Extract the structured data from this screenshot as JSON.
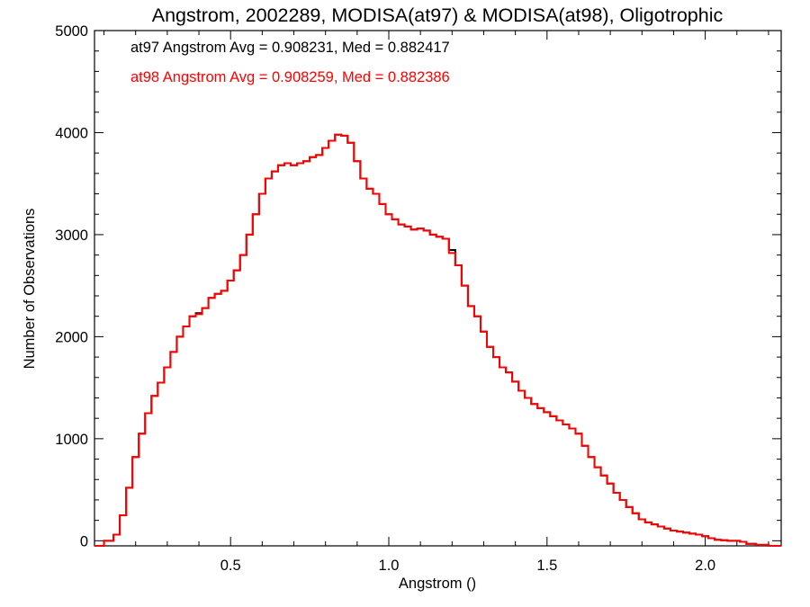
{
  "chart_data": {
    "type": "line",
    "title": "Angstrom, 2002289, MODISA(at97) & MODISA(at98), Oligotrophic",
    "xlabel": "Angstrom ()",
    "ylabel": "Number of Observations",
    "xlim": [
      0.07,
      2.24
    ],
    "ylim": [
      -50,
      5000
    ],
    "xticks": [
      0.5,
      1.0,
      1.5,
      2.0
    ],
    "xtick_labels": [
      "0.5",
      "1.0",
      "1.5",
      "2.0"
    ],
    "yticks": [
      0,
      1000,
      2000,
      3000,
      4000,
      5000
    ],
    "ytick_labels": [
      "0",
      "1000",
      "2000",
      "3000",
      "4000",
      "5000"
    ],
    "grid": false,
    "legend_position": "top-left",
    "step": true,
    "series": [
      {
        "name": "at97",
        "color": "#000000",
        "annotation": "at97 Angstrom Avg = 0.908231, Med = 0.882417",
        "x": [
          0.07,
          0.1,
          0.13,
          0.15,
          0.17,
          0.19,
          0.21,
          0.23,
          0.25,
          0.27,
          0.29,
          0.31,
          0.33,
          0.35,
          0.37,
          0.39,
          0.41,
          0.43,
          0.45,
          0.47,
          0.49,
          0.51,
          0.53,
          0.55,
          0.57,
          0.59,
          0.61,
          0.63,
          0.65,
          0.67,
          0.69,
          0.71,
          0.73,
          0.75,
          0.77,
          0.79,
          0.81,
          0.83,
          0.85,
          0.87,
          0.89,
          0.91,
          0.93,
          0.95,
          0.97,
          0.99,
          1.01,
          1.03,
          1.05,
          1.07,
          1.09,
          1.11,
          1.13,
          1.15,
          1.17,
          1.19,
          1.21,
          1.23,
          1.25,
          1.27,
          1.29,
          1.31,
          1.33,
          1.35,
          1.37,
          1.39,
          1.41,
          1.43,
          1.45,
          1.47,
          1.49,
          1.51,
          1.53,
          1.55,
          1.57,
          1.59,
          1.61,
          1.63,
          1.65,
          1.67,
          1.69,
          1.71,
          1.73,
          1.75,
          1.77,
          1.79,
          1.81,
          1.83,
          1.85,
          1.87,
          1.89,
          1.91,
          1.93,
          1.95,
          1.97,
          1.99,
          2.01,
          2.03,
          2.05,
          2.07,
          2.09,
          2.11,
          2.13,
          2.16,
          2.2,
          2.24
        ],
        "y": [
          -50,
          0,
          60,
          250,
          520,
          820,
          1050,
          1250,
          1420,
          1550,
          1700,
          1850,
          2000,
          2100,
          2200,
          2230,
          2280,
          2380,
          2420,
          2450,
          2550,
          2650,
          2800,
          3000,
          3200,
          3400,
          3550,
          3620,
          3680,
          3700,
          3680,
          3700,
          3720,
          3760,
          3780,
          3850,
          3920,
          3980,
          3970,
          3900,
          3720,
          3550,
          3450,
          3400,
          3300,
          3200,
          3150,
          3100,
          3080,
          3050,
          3060,
          3040,
          3000,
          2980,
          2960,
          2850,
          2700,
          2500,
          2300,
          2200,
          2050,
          1900,
          1800,
          1700,
          1650,
          1560,
          1470,
          1400,
          1340,
          1300,
          1260,
          1220,
          1180,
          1140,
          1100,
          1050,
          930,
          820,
          720,
          640,
          560,
          470,
          400,
          330,
          270,
          210,
          180,
          160,
          140,
          120,
          100,
          90,
          80,
          70,
          60,
          45,
          25,
          10,
          5,
          0,
          0,
          -10,
          -30,
          -40,
          -50,
          -50
        ]
      },
      {
        "name": "at98",
        "color": "#ff0000",
        "annotation": "at98 Angstrom Avg = 0.908259, Med = 0.882386",
        "x": [
          0.07,
          0.1,
          0.13,
          0.15,
          0.17,
          0.19,
          0.21,
          0.23,
          0.25,
          0.27,
          0.29,
          0.31,
          0.33,
          0.35,
          0.37,
          0.39,
          0.41,
          0.43,
          0.45,
          0.47,
          0.49,
          0.51,
          0.53,
          0.55,
          0.57,
          0.59,
          0.61,
          0.63,
          0.65,
          0.67,
          0.69,
          0.71,
          0.73,
          0.75,
          0.77,
          0.79,
          0.81,
          0.83,
          0.85,
          0.87,
          0.89,
          0.91,
          0.93,
          0.95,
          0.97,
          0.99,
          1.01,
          1.03,
          1.05,
          1.07,
          1.09,
          1.11,
          1.13,
          1.15,
          1.17,
          1.19,
          1.21,
          1.23,
          1.25,
          1.27,
          1.29,
          1.31,
          1.33,
          1.35,
          1.37,
          1.39,
          1.41,
          1.43,
          1.45,
          1.47,
          1.49,
          1.51,
          1.53,
          1.55,
          1.57,
          1.59,
          1.61,
          1.63,
          1.65,
          1.67,
          1.69,
          1.71,
          1.73,
          1.75,
          1.77,
          1.79,
          1.81,
          1.83,
          1.85,
          1.87,
          1.89,
          1.91,
          1.93,
          1.95,
          1.97,
          1.99,
          2.01,
          2.03,
          2.05,
          2.07,
          2.09,
          2.11,
          2.13,
          2.16,
          2.2,
          2.24
        ],
        "y": [
          -50,
          0,
          60,
          250,
          520,
          820,
          1050,
          1250,
          1420,
          1550,
          1700,
          1850,
          2000,
          2100,
          2200,
          2220,
          2280,
          2380,
          2420,
          2450,
          2550,
          2650,
          2800,
          3000,
          3200,
          3400,
          3550,
          3620,
          3680,
          3700,
          3680,
          3700,
          3720,
          3760,
          3780,
          3850,
          3920,
          3980,
          3970,
          3900,
          3720,
          3550,
          3450,
          3400,
          3300,
          3200,
          3150,
          3100,
          3080,
          3050,
          3060,
          3040,
          3000,
          2980,
          2960,
          2820,
          2700,
          2500,
          2300,
          2200,
          2050,
          1900,
          1800,
          1700,
          1650,
          1560,
          1470,
          1400,
          1340,
          1300,
          1260,
          1220,
          1180,
          1140,
          1100,
          1050,
          930,
          820,
          720,
          640,
          560,
          470,
          400,
          330,
          270,
          210,
          180,
          160,
          140,
          120,
          100,
          90,
          80,
          70,
          60,
          45,
          25,
          10,
          5,
          0,
          0,
          -10,
          -30,
          -40,
          -50,
          -50
        ]
      }
    ]
  }
}
